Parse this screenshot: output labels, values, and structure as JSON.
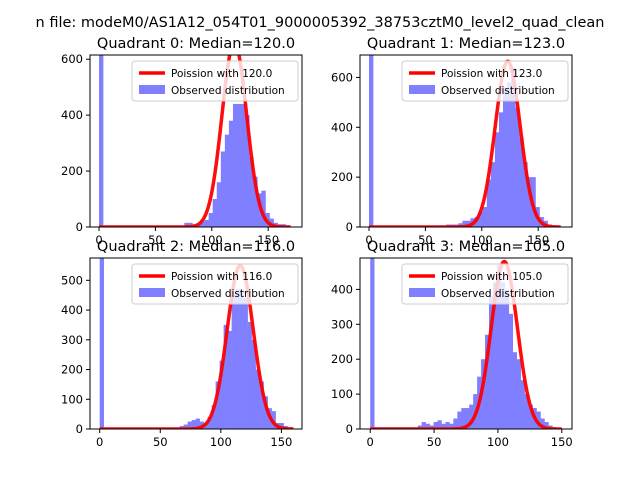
{
  "figure": {
    "suptitle": "n file: modeM0/AS1A12_054T01_9000005392_38753cztM0_level2_quad_clean"
  },
  "colors": {
    "poisson": "#ff0000",
    "observed": "#7f7fff",
    "axis": "#000000"
  },
  "chart_data": [
    {
      "type": "bar+line",
      "title": "Quadrant 0: Median=120.0",
      "xlim": [
        -8,
        180
      ],
      "ylim": [
        0,
        615
      ],
      "xticks": [
        0,
        50,
        100,
        150
      ],
      "yticks": [
        0,
        200,
        400,
        600
      ],
      "legend": "top-right",
      "series": [
        {
          "name": "Poission with 120.0",
          "kind": "poisson",
          "lambda": 120.0,
          "peak": 660,
          "x_range": [
            0,
            170
          ]
        },
        {
          "name": "Observed distribution",
          "kind": "histogram",
          "bin_width": 3.6,
          "bins": [
            [
              0,
              615
            ],
            [
              3.6,
              5
            ],
            [
              7.2,
              5
            ],
            [
              10.8,
              5
            ],
            [
              14.4,
              5
            ],
            [
              18,
              5
            ],
            [
              21.6,
              5
            ],
            [
              25.2,
              5
            ],
            [
              28.8,
              5
            ],
            [
              32.4,
              5
            ],
            [
              36,
              5
            ],
            [
              39.6,
              5
            ],
            [
              43.2,
              5
            ],
            [
              46.8,
              5
            ],
            [
              50.4,
              5
            ],
            [
              54,
              5
            ],
            [
              57.6,
              5
            ],
            [
              61.2,
              5
            ],
            [
              64.8,
              5
            ],
            [
              68.4,
              5
            ],
            [
              72,
              5
            ],
            [
              75.6,
              15
            ],
            [
              79.2,
              15
            ],
            [
              82.8,
              10
            ],
            [
              86.4,
              10
            ],
            [
              90,
              20
            ],
            [
              93.6,
              25
            ],
            [
              97.2,
              50
            ],
            [
              100.8,
              100
            ],
            [
              104.4,
              160
            ],
            [
              108,
              270
            ],
            [
              111.6,
              330
            ],
            [
              115.2,
              380
            ],
            [
              118.8,
              440
            ],
            [
              122.4,
              440
            ],
            [
              126,
              440
            ],
            [
              129.6,
              400
            ],
            [
              133.2,
              250
            ],
            [
              136.8,
              180
            ],
            [
              140.4,
              120
            ],
            [
              144,
              130
            ],
            [
              147.6,
              50
            ],
            [
              151.2,
              30
            ],
            [
              154.8,
              15
            ],
            [
              158.4,
              10
            ],
            [
              162,
              10
            ],
            [
              165.6,
              5
            ]
          ]
        }
      ]
    },
    {
      "type": "bar+line",
      "title": "Quadrant 1: Median=123.0",
      "xlim": [
        -8,
        180
      ],
      "ylim": [
        0,
        690
      ],
      "xticks": [
        0,
        50,
        100,
        150
      ],
      "yticks": [
        0,
        200,
        400,
        600
      ],
      "legend": "top-right",
      "series": [
        {
          "name": "Poission with 123.0",
          "kind": "poisson",
          "lambda": 123.0,
          "peak": 665,
          "x_range": [
            0,
            170
          ]
        },
        {
          "name": "Observed distribution",
          "kind": "histogram",
          "bin_width": 3.6,
          "bins": [
            [
              0,
              690
            ],
            [
              3.6,
              5
            ],
            [
              7.2,
              5
            ],
            [
              10.8,
              5
            ],
            [
              14.4,
              5
            ],
            [
              18,
              5
            ],
            [
              21.6,
              5
            ],
            [
              25.2,
              5
            ],
            [
              28.8,
              5
            ],
            [
              32.4,
              5
            ],
            [
              36,
              5
            ],
            [
              39.6,
              5
            ],
            [
              43.2,
              5
            ],
            [
              46.8,
              5
            ],
            [
              50.4,
              5
            ],
            [
              54,
              5
            ],
            [
              57.6,
              5
            ],
            [
              61.2,
              5
            ],
            [
              64.8,
              5
            ],
            [
              68.4,
              10
            ],
            [
              72,
              10
            ],
            [
              75.6,
              10
            ],
            [
              79.2,
              15
            ],
            [
              82.8,
              25
            ],
            [
              86.4,
              25
            ],
            [
              90,
              35
            ],
            [
              93.6,
              40
            ],
            [
              97.2,
              60
            ],
            [
              100.8,
              80
            ],
            [
              104.4,
              190
            ],
            [
              108,
              260
            ],
            [
              111.6,
              380
            ],
            [
              115.2,
              460
            ],
            [
              118.8,
              560
            ],
            [
              122.4,
              580
            ],
            [
              126,
              640
            ],
            [
              129.6,
              480
            ],
            [
              133.2,
              360
            ],
            [
              136.8,
              260
            ],
            [
              140.4,
              200
            ],
            [
              144,
              200
            ],
            [
              147.6,
              80
            ],
            [
              151.2,
              40
            ],
            [
              154.8,
              25
            ],
            [
              158.4,
              10
            ],
            [
              162,
              5
            ],
            [
              165.6,
              5
            ]
          ]
        }
      ]
    },
    {
      "type": "bar+line",
      "title": "Quadrant 2: Median=116.0",
      "xlim": [
        -8,
        167
      ],
      "ylim": [
        0,
        575
      ],
      "xticks": [
        0,
        50,
        100,
        150
      ],
      "yticks": [
        0,
        100,
        200,
        300,
        400,
        500
      ],
      "legend": "top-right",
      "series": [
        {
          "name": "Poission with 116.0",
          "kind": "poisson",
          "lambda": 116.0,
          "peak": 550,
          "x_range": [
            0,
            160
          ]
        },
        {
          "name": "Observed distribution",
          "kind": "histogram",
          "bin_width": 3.3,
          "bins": [
            [
              0,
              575
            ],
            [
              3.3,
              5
            ],
            [
              6.6,
              5
            ],
            [
              9.9,
              5
            ],
            [
              13.2,
              5
            ],
            [
              16.5,
              5
            ],
            [
              19.8,
              5
            ],
            [
              23.1,
              5
            ],
            [
              26.4,
              5
            ],
            [
              29.7,
              5
            ],
            [
              33,
              5
            ],
            [
              36.3,
              5
            ],
            [
              39.6,
              5
            ],
            [
              42.9,
              5
            ],
            [
              46.2,
              5
            ],
            [
              49.5,
              5
            ],
            [
              52.8,
              5
            ],
            [
              56.1,
              5
            ],
            [
              59.4,
              5
            ],
            [
              62.7,
              5
            ],
            [
              66,
              10
            ],
            [
              69.3,
              15
            ],
            [
              72.6,
              25
            ],
            [
              75.9,
              30
            ],
            [
              79.2,
              35
            ],
            [
              82.5,
              25
            ],
            [
              85.8,
              20
            ],
            [
              89.1,
              40
            ],
            [
              92.4,
              80
            ],
            [
              95.7,
              160
            ],
            [
              99,
              230
            ],
            [
              102.3,
              350
            ],
            [
              105.6,
              330
            ],
            [
              108.9,
              450
            ],
            [
              112.2,
              470
            ],
            [
              115.5,
              470
            ],
            [
              118.8,
              440
            ],
            [
              122.1,
              360
            ],
            [
              125.4,
              300
            ],
            [
              128.7,
              200
            ],
            [
              132,
              160
            ],
            [
              135.3,
              110
            ],
            [
              138.6,
              70
            ],
            [
              141.9,
              60
            ],
            [
              145.2,
              20
            ],
            [
              148.5,
              20
            ],
            [
              151.8,
              10
            ],
            [
              155.1,
              5
            ]
          ]
        }
      ]
    },
    {
      "type": "bar+line",
      "title": "Quadrant 3: Median=105.0",
      "xlim": [
        -8,
        158
      ],
      "ylim": [
        0,
        490
      ],
      "xticks": [
        0,
        50,
        100,
        150
      ],
      "yticks": [
        0,
        100,
        200,
        300,
        400
      ],
      "legend": "top-right",
      "series": [
        {
          "name": "Poission with 105.0",
          "kind": "poisson",
          "lambda": 105.0,
          "peak": 480,
          "x_range": [
            0,
            150
          ]
        },
        {
          "name": "Observed distribution",
          "kind": "histogram",
          "bin_width": 3.1,
          "bins": [
            [
              0,
              490
            ],
            [
              3.1,
              5
            ],
            [
              6.2,
              5
            ],
            [
              9.3,
              5
            ],
            [
              12.4,
              5
            ],
            [
              15.5,
              5
            ],
            [
              18.6,
              5
            ],
            [
              21.7,
              5
            ],
            [
              24.8,
              5
            ],
            [
              27.9,
              5
            ],
            [
              31,
              5
            ],
            [
              34.1,
              5
            ],
            [
              37.2,
              10
            ],
            [
              40.3,
              20
            ],
            [
              43.4,
              15
            ],
            [
              46.5,
              10
            ],
            [
              49.6,
              20
            ],
            [
              52.7,
              25
            ],
            [
              55.8,
              15
            ],
            [
              58.9,
              20
            ],
            [
              62,
              15
            ],
            [
              65.1,
              30
            ],
            [
              68.2,
              50
            ],
            [
              71.3,
              60
            ],
            [
              74.4,
              60
            ],
            [
              77.5,
              70
            ],
            [
              80.6,
              100
            ],
            [
              83.7,
              150
            ],
            [
              86.8,
              200
            ],
            [
              89.9,
              270
            ],
            [
              93,
              380
            ],
            [
              96.1,
              420
            ],
            [
              99.2,
              470
            ],
            [
              102.3,
              420
            ],
            [
              105.4,
              400
            ],
            [
              108.5,
              330
            ],
            [
              111.6,
              220
            ],
            [
              114.7,
              200
            ],
            [
              117.8,
              140
            ],
            [
              120.9,
              100
            ],
            [
              124,
              70
            ],
            [
              127.1,
              60
            ],
            [
              130.2,
              50
            ],
            [
              133.3,
              30
            ],
            [
              136.4,
              20
            ],
            [
              139.5,
              10
            ],
            [
              142.6,
              5
            ]
          ]
        }
      ]
    }
  ]
}
